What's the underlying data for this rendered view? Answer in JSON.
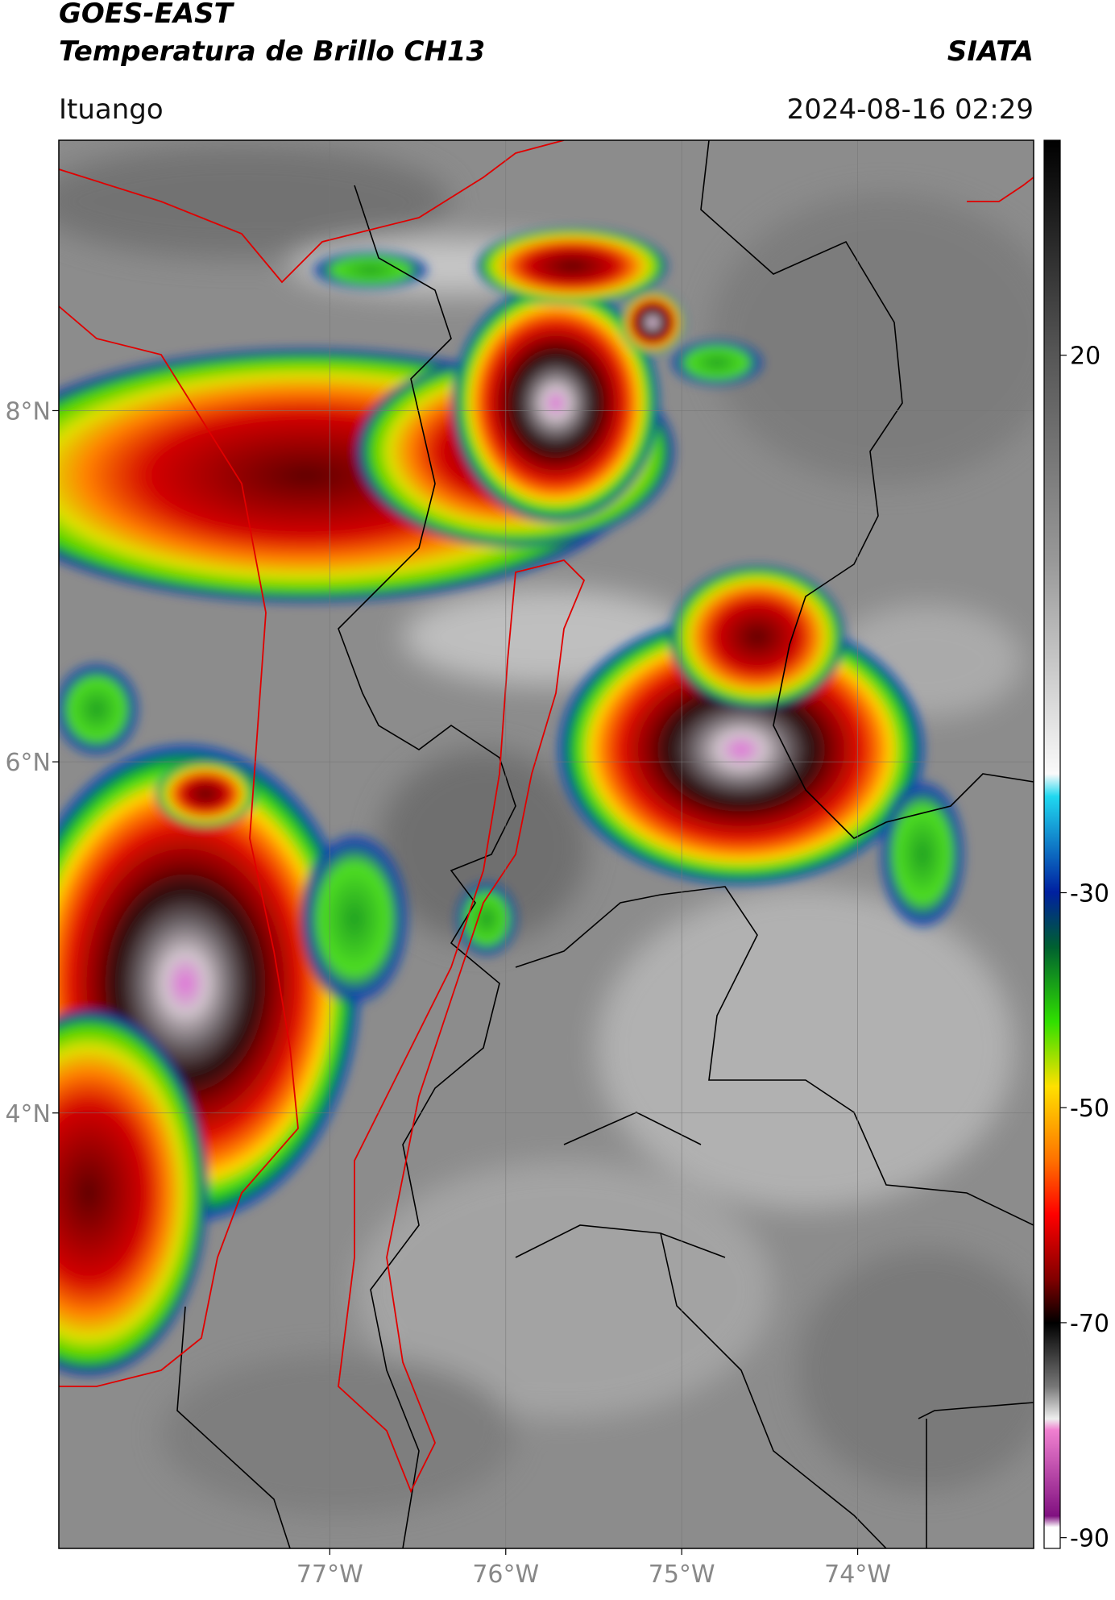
{
  "header": {
    "title": "GOES-EAST",
    "subtitle": "Temperatura de Brillo CH13",
    "source": "SIATA",
    "region": "Ituango",
    "timestamp": "2024-08-16 02:29"
  },
  "map": {
    "xlim": [
      -78.54,
      -73.0
    ],
    "ylim": [
      1.52,
      9.54
    ],
    "xticks": [
      {
        "value": -77,
        "label": "77°W"
      },
      {
        "value": -76,
        "label": "76°W"
      },
      {
        "value": -75,
        "label": "75°W"
      },
      {
        "value": -74,
        "label": "74°W"
      }
    ],
    "yticks": [
      {
        "value": 8,
        "label": "8°N"
      },
      {
        "value": 6,
        "label": "6°N"
      },
      {
        "value": 4,
        "label": "4°N"
      }
    ],
    "grid": true
  },
  "colorbar": {
    "clim": [
      -91,
      40
    ],
    "ticks": [
      20,
      -30,
      -50,
      -70,
      -90
    ]
  }
}
